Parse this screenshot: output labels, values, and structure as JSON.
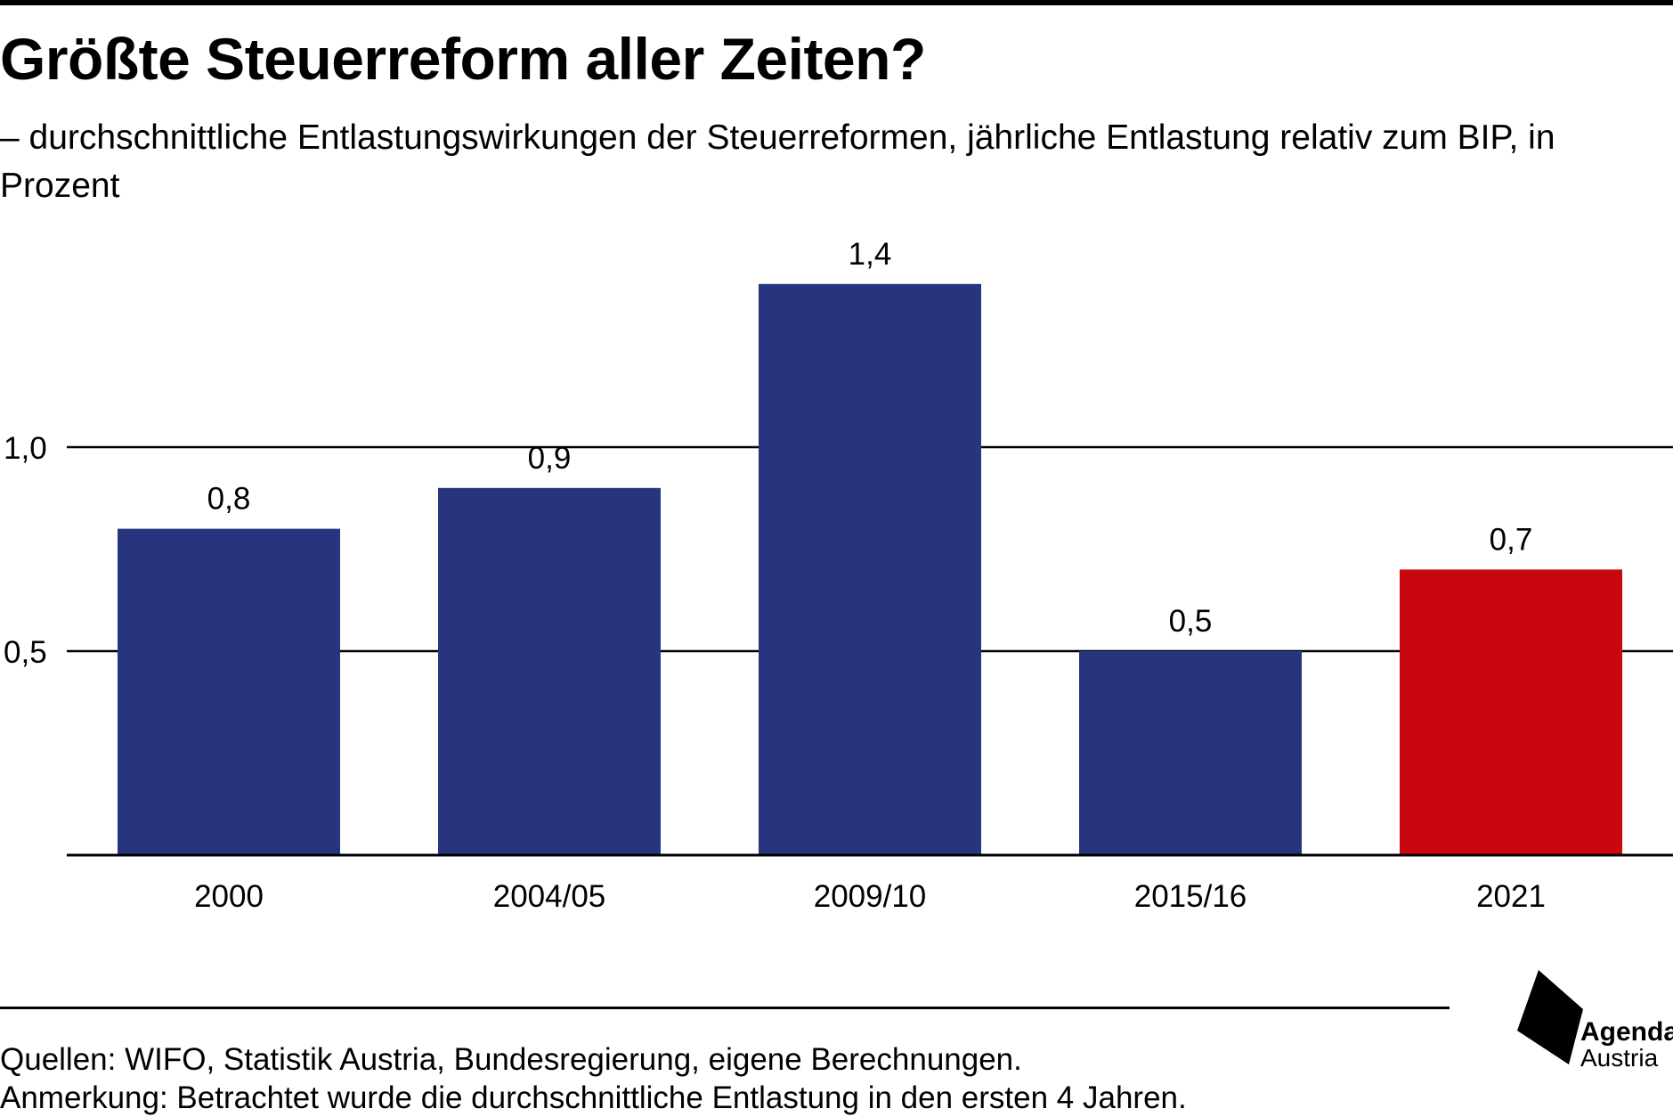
{
  "header": {
    "title": "Größte Steuerreform aller Zeiten?",
    "subtitle": "– durchschnittliche Entlastungswirkungen der Steuerreformen, jährliche Entlastung relativ zum BIP, in Prozent"
  },
  "chart_data": {
    "type": "bar",
    "title": "Größte Steuerreform aller Zeiten?",
    "subtitle": "– durchschnittliche Entlastungswirkungen der Steuerreformen, jährliche Entlastung relativ zum BIP, in Prozent",
    "categories": [
      "2000",
      "2004/05",
      "2009/10",
      "2015/16",
      "2021"
    ],
    "values": [
      0.8,
      0.9,
      1.4,
      0.5,
      0.7
    ],
    "value_labels": [
      "0,8",
      "0,9",
      "1,4",
      "0,5",
      "0,7"
    ],
    "colors": [
      "#27357f",
      "#27357f",
      "#27357f",
      "#27357f",
      "#c8070e"
    ],
    "yticks": [
      0.5,
      1.0
    ],
    "ytick_labels": [
      "0,5",
      "1,0"
    ],
    "ylim": [
      0,
      1.55
    ],
    "grid": true,
    "legend": "none"
  },
  "footer": {
    "source": "Quellen: WIFO, Statistik Austria, Bundesregierung, eigene Berechnungen.",
    "note": "Anmerkung: Betrachtet wurde die durchschnittliche Entlastung in den ersten 4 Jahren."
  },
  "logo": {
    "line1": "Agenda",
    "line2": "Austria"
  }
}
